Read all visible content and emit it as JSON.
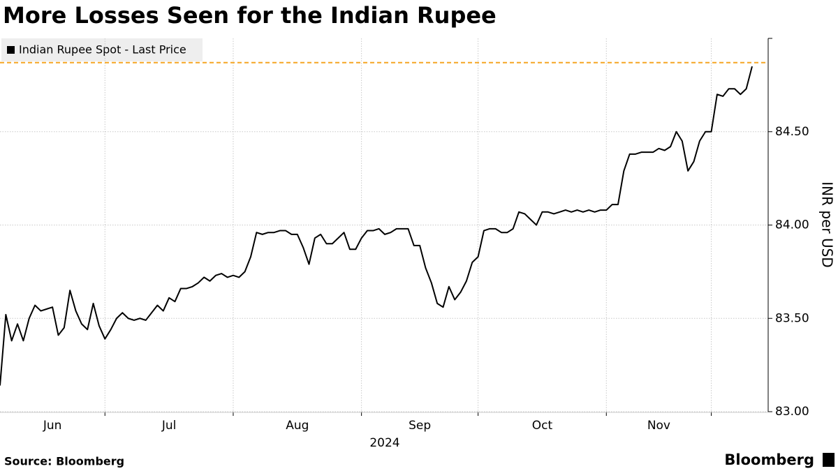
{
  "chart_data": {
    "type": "line",
    "title": "More Losses Seen for the Indian Rupee",
    "source": "Source: Bloomberg",
    "brand": "Bloomberg",
    "y_label": "INR per USD",
    "x_label": "2024",
    "ylim": [
      83,
      85
    ],
    "yticks": [
      {
        "value": 83,
        "label": "83.00"
      },
      {
        "value": 83.5,
        "label": "83.50"
      },
      {
        "value": 84,
        "label": "84.00"
      },
      {
        "value": 84.5,
        "label": "84.50"
      }
    ],
    "grid": true,
    "xgrid": [
      18,
      40,
      62,
      82,
      104,
      122
    ],
    "reference_line": {
      "value": 84.87,
      "color": "#f5a623"
    },
    "categories": [
      null,
      null,
      null,
      null,
      null,
      null,
      null,
      null,
      null,
      "Jun",
      null,
      null,
      null,
      null,
      null,
      null,
      null,
      null,
      null,
      null,
      null,
      null,
      null,
      null,
      null,
      null,
      null,
      null,
      null,
      "Jul",
      null,
      null,
      null,
      null,
      null,
      null,
      null,
      null,
      null,
      null,
      null,
      null,
      null,
      null,
      null,
      null,
      null,
      null,
      null,
      null,
      null,
      "Aug",
      null,
      null,
      null,
      null,
      null,
      null,
      null,
      null,
      null,
      null,
      null,
      null,
      null,
      null,
      null,
      null,
      null,
      null,
      null,
      null,
      "Sep",
      null,
      null,
      null,
      null,
      null,
      null,
      null,
      null,
      null,
      null,
      null,
      null,
      null,
      null,
      null,
      null,
      null,
      null,
      null,
      null,
      "Oct",
      null,
      null,
      null,
      null,
      null,
      null,
      null,
      null,
      null,
      null,
      null,
      null,
      null,
      null,
      null,
      null,
      null,
      null,
      null,
      "Nov",
      null,
      null,
      null,
      null,
      null,
      null,
      null,
      null,
      null,
      null,
      null,
      null,
      null,
      null,
      null,
      null
    ],
    "series": [
      {
        "name": "Indian Rupee Spot - Last Price",
        "color": "#000000",
        "values": [
          83.14,
          83.52,
          83.38,
          83.47,
          83.38,
          83.5,
          83.57,
          83.54,
          83.55,
          83.56,
          83.41,
          83.45,
          83.65,
          83.54,
          83.47,
          83.44,
          83.58,
          83.46,
          83.39,
          83.44,
          83.5,
          83.53,
          83.5,
          83.49,
          83.5,
          83.49,
          83.53,
          83.57,
          83.54,
          83.61,
          83.59,
          83.66,
          83.66,
          83.67,
          83.69,
          83.72,
          83.7,
          83.73,
          83.74,
          83.72,
          83.73,
          83.72,
          83.75,
          83.83,
          83.96,
          83.95,
          83.96,
          83.96,
          83.97,
          83.97,
          83.95,
          83.95,
          83.88,
          83.79,
          83.93,
          83.95,
          83.9,
          83.9,
          83.93,
          83.96,
          83.87,
          83.87,
          83.93,
          83.97,
          83.97,
          83.98,
          83.95,
          83.96,
          83.98,
          83.98,
          83.98,
          83.89,
          83.89,
          83.77,
          83.69,
          83.58,
          83.56,
          83.67,
          83.6,
          83.64,
          83.7,
          83.8,
          83.83,
          83.97,
          83.98,
          83.98,
          83.96,
          83.96,
          83.98,
          84.07,
          84.06,
          84.03,
          84.0,
          84.07,
          84.07,
          84.06,
          84.07,
          84.08,
          84.07,
          84.08,
          84.07,
          84.08,
          84.07,
          84.08,
          84.08,
          84.11,
          84.11,
          84.29,
          84.38,
          84.38,
          84.39,
          84.39,
          84.39,
          84.41,
          84.4,
          84.42,
          84.5,
          84.45,
          84.29,
          84.34,
          84.45,
          84.5,
          84.5,
          84.7,
          84.69,
          84.73,
          84.73,
          84.7,
          84.73,
          84.85
        ]
      }
    ]
  }
}
